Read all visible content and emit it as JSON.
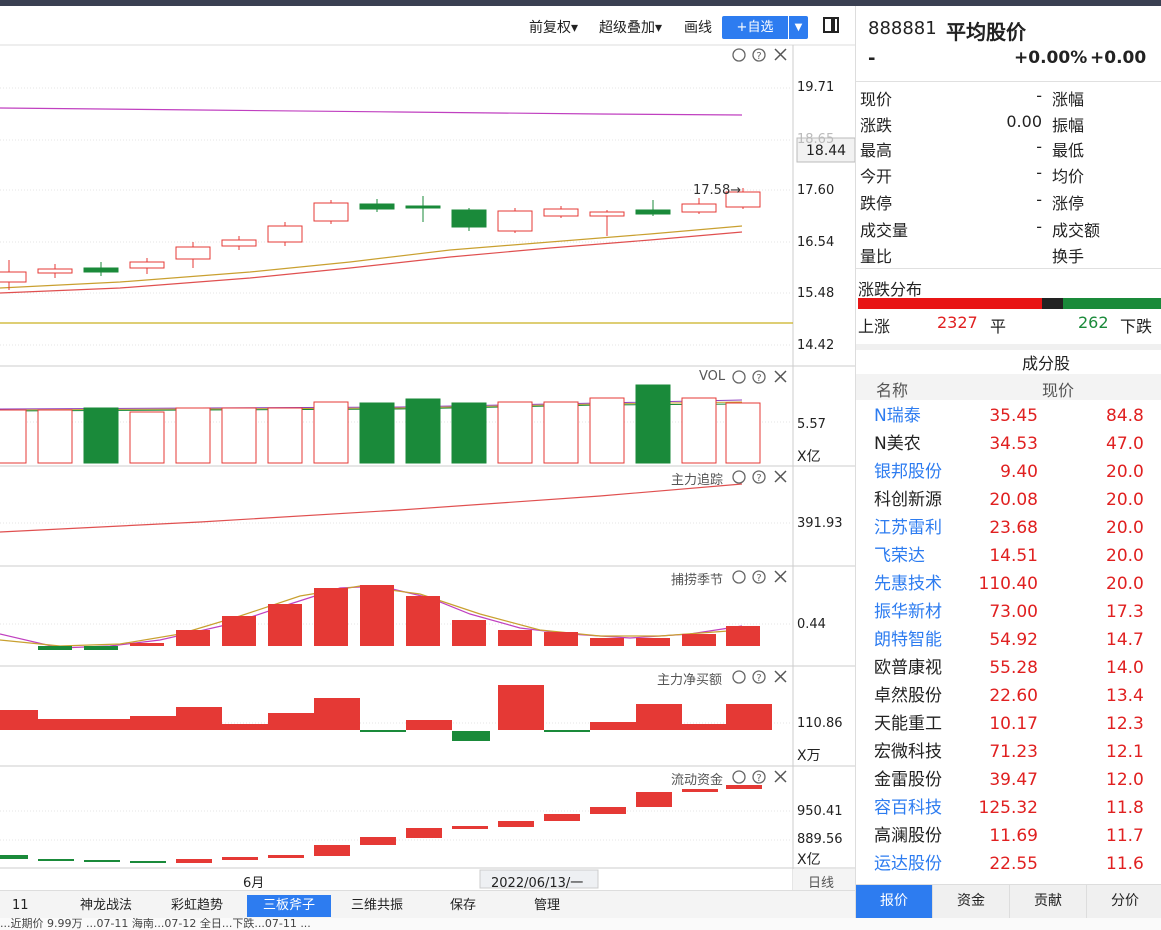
{
  "toolbar": {
    "adjust": "前复权",
    "overlay": "超级叠加",
    "draw": "画线",
    "add_fav": "+自选"
  },
  "price_axis": [
    "19.71",
    "18.65",
    "17.60",
    "16.54",
    "15.48",
    "14.42"
  ],
  "current_price_tag": "18.44",
  "annotation_high": "17.58→",
  "vol": {
    "label": "VOL",
    "axis": "5.57",
    "unit": "X亿"
  },
  "indicators": [
    {
      "label": "主力追踪",
      "axis": "391.93",
      "unit": ""
    },
    {
      "label": "捕捞季节",
      "axis": "0.44",
      "unit": ""
    },
    {
      "label": "主力净买额",
      "axis": "110.86",
      "unit": "X万"
    },
    {
      "label": "流动资金",
      "axis": "950.41",
      "axis2": "889.56",
      "unit": "X亿"
    }
  ],
  "x_axis": {
    "month": "6月",
    "cursor_date": "2022/06/13/一",
    "period": "日线"
  },
  "bottom_tabs": [
    "11",
    "神龙战法",
    "彩虹趋势",
    "三板斧子",
    "三维共振",
    "保存",
    "管理"
  ],
  "bottom_active": "三板斧子",
  "stock": {
    "code": "888881",
    "name": "平均股价",
    "price": "-",
    "change_pct": "+0.00%",
    "change": "+0.00"
  },
  "quote": [
    {
      "l": "现价",
      "v": "-",
      "r": "涨幅"
    },
    {
      "l": "涨跌",
      "v": "0.00",
      "r": "振幅"
    },
    {
      "l": "最高",
      "v": "-",
      "r": "最低"
    },
    {
      "l": "今开",
      "v": "-",
      "r": "均价"
    },
    {
      "l": "跌停",
      "v": "-",
      "r": "涨停"
    },
    {
      "l": "成交量",
      "v": "-",
      "r": "成交额"
    },
    {
      "l": "量比",
      "v": "",
      "r": "换手"
    }
  ],
  "distribution": {
    "title": "涨跌分布",
    "up_label": "上涨",
    "up": "2327",
    "flat_label": "平",
    "down": "262",
    "down_label": "下跌"
  },
  "constituents": {
    "title": "成分股",
    "col_name": "名称",
    "col_price": "现价",
    "rows": [
      {
        "name": "N瑞泰",
        "price": "35.45",
        "pct": "84.8",
        "link": true
      },
      {
        "name": "N美农",
        "price": "34.53",
        "pct": "47.0",
        "link": false
      },
      {
        "name": "银邦股份",
        "price": "9.40",
        "pct": "20.0",
        "link": true
      },
      {
        "name": "科创新源",
        "price": "20.08",
        "pct": "20.0",
        "link": false
      },
      {
        "name": "江苏雷利",
        "price": "23.68",
        "pct": "20.0",
        "link": true
      },
      {
        "name": "飞荣达",
        "price": "14.51",
        "pct": "20.0",
        "link": true
      },
      {
        "name": "先惠技术",
        "price": "110.40",
        "pct": "20.0",
        "link": true
      },
      {
        "name": "振华新材",
        "price": "73.00",
        "pct": "17.3",
        "link": true
      },
      {
        "name": "朗特智能",
        "price": "54.92",
        "pct": "14.7",
        "link": true
      },
      {
        "name": "欧普康视",
        "price": "55.28",
        "pct": "14.0",
        "link": false
      },
      {
        "name": "卓然股份",
        "price": "22.60",
        "pct": "13.4",
        "link": false
      },
      {
        "name": "天能重工",
        "price": "10.17",
        "pct": "12.3",
        "link": false
      },
      {
        "name": "宏微科技",
        "price": "71.23",
        "pct": "12.1",
        "link": false
      },
      {
        "name": "金雷股份",
        "price": "39.47",
        "pct": "12.0",
        "link": false
      },
      {
        "name": "容百科技",
        "price": "125.32",
        "pct": "11.8",
        "link": true
      },
      {
        "name": "高澜股份",
        "price": "11.69",
        "pct": "11.7",
        "link": false
      },
      {
        "name": "运达股份",
        "price": "22.55",
        "pct": "11.6",
        "link": true
      }
    ]
  },
  "rp_tabs": [
    "报价",
    "资金",
    "贡献",
    "分价"
  ],
  "rp_active": "报价",
  "ticker": "...近期价 9.99万  ...07-11 海南...07-12 全日...下跌...07-11 ...",
  "colors": {
    "up": "#e53935",
    "down": "#1a8a3a",
    "accent": "#2d7cf0",
    "ma_magenta": "#c040c0",
    "ma_orange": "#c9a030"
  }
}
